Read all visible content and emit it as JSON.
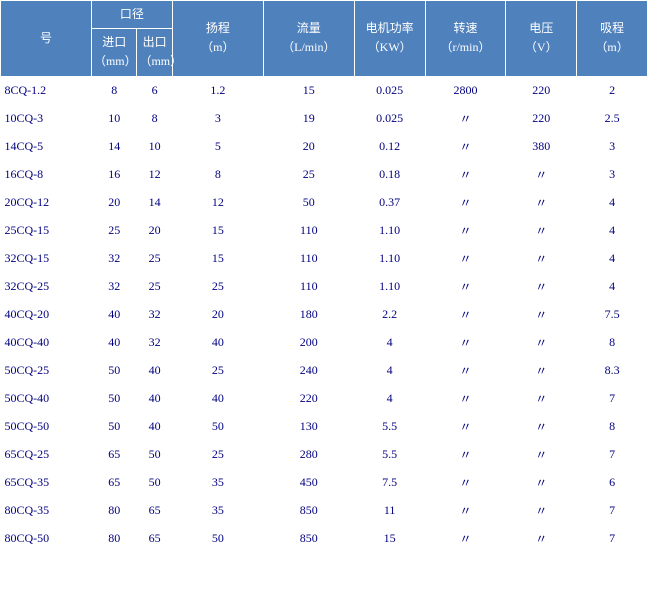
{
  "header": {
    "group_caliber": "口径",
    "model": "号",
    "inlet": "进口",
    "outlet": "出口",
    "unit_mm": "（mm）",
    "unit_mm_stack": "（mm）",
    "head": "扬程",
    "unit_head": "（m）",
    "flow": "流量",
    "unit_flow": "（L/min）",
    "power": "电机功率",
    "unit_power": "（KW）",
    "speed": "转速",
    "unit_speed": "（r/min）",
    "voltage": "电压",
    "unit_voltage": "（V）",
    "suction": "吸程",
    "unit_suction": "（m）"
  },
  "colors": {
    "header_bg": "#4f81bd",
    "header_fg": "#ffffff",
    "cell_fg": "#000080",
    "bg": "#ffffff"
  },
  "columns": [
    "model",
    "inlet",
    "outlet",
    "head",
    "flow",
    "power",
    "speed",
    "voltage",
    "suction"
  ],
  "rows": [
    {
      "model": "8CQ-1.2",
      "inlet": "8",
      "outlet": "6",
      "head": "1.2",
      "flow": "15",
      "power": "0.025",
      "speed": "2800",
      "voltage": "220",
      "suction": "2"
    },
    {
      "model": "10CQ-3",
      "inlet": "10",
      "outlet": "8",
      "head": "3",
      "flow": "19",
      "power": "0.025",
      "speed": "〃",
      "voltage": "220",
      "suction": "2.5"
    },
    {
      "model": "14CQ-5",
      "inlet": "14",
      "outlet": "10",
      "head": "5",
      "flow": "20",
      "power": "0.12",
      "speed": "〃",
      "voltage": "380",
      "suction": "3"
    },
    {
      "model": "16CQ-8",
      "inlet": "16",
      "outlet": "12",
      "head": "8",
      "flow": "25",
      "power": "0.18",
      "speed": "〃",
      "voltage": "〃",
      "suction": "3"
    },
    {
      "model": "20CQ-12",
      "inlet": "20",
      "outlet": "14",
      "head": "12",
      "flow": "50",
      "power": "0.37",
      "speed": "〃",
      "voltage": "〃",
      "suction": "4"
    },
    {
      "model": "25CQ-15",
      "inlet": "25",
      "outlet": "20",
      "head": "15",
      "flow": "110",
      "power": "1.10",
      "speed": "〃",
      "voltage": "〃",
      "suction": "4"
    },
    {
      "model": "32CQ-15",
      "inlet": "32",
      "outlet": "25",
      "head": "15",
      "flow": "110",
      "power": "1.10",
      "speed": "〃",
      "voltage": "〃",
      "suction": "4"
    },
    {
      "model": "32CQ-25",
      "inlet": "32",
      "outlet": "25",
      "head": "25",
      "flow": "110",
      "power": "1.10",
      "speed": "〃",
      "voltage": "〃",
      "suction": "4"
    },
    {
      "model": "40CQ-20",
      "inlet": "40",
      "outlet": "32",
      "head": "20",
      "flow": "180",
      "power": "2.2",
      "speed": "〃",
      "voltage": "〃",
      "suction": "7.5"
    },
    {
      "model": "40CQ-40",
      "inlet": "40",
      "outlet": "32",
      "head": "40",
      "flow": "200",
      "power": "4",
      "speed": "〃",
      "voltage": "〃",
      "suction": "8"
    },
    {
      "model": "50CQ-25",
      "inlet": "50",
      "outlet": "40",
      "head": "25",
      "flow": "240",
      "power": "4",
      "speed": "〃",
      "voltage": "〃",
      "suction": "8.3"
    },
    {
      "model": "50CQ-40",
      "inlet": "50",
      "outlet": "40",
      "head": "40",
      "flow": "220",
      "power": "4",
      "speed": "〃",
      "voltage": "〃",
      "suction": "7"
    },
    {
      "model": "50CQ-50",
      "inlet": "50",
      "outlet": "40",
      "head": "50",
      "flow": "130",
      "power": "5.5",
      "speed": "〃",
      "voltage": "〃",
      "suction": "8"
    },
    {
      "model": "65CQ-25",
      "inlet": "65",
      "outlet": "50",
      "head": "25",
      "flow": "280",
      "power": "5.5",
      "speed": "〃",
      "voltage": "〃",
      "suction": "7"
    },
    {
      "model": "65CQ-35",
      "inlet": "65",
      "outlet": "50",
      "head": "35",
      "flow": "450",
      "power": "7.5",
      "speed": "〃",
      "voltage": "〃",
      "suction": "6"
    },
    {
      "model": "80CQ-35",
      "inlet": "80",
      "outlet": "65",
      "head": "35",
      "flow": "850",
      "power": "11",
      "speed": "〃",
      "voltage": "〃",
      "suction": "7"
    },
    {
      "model": "80CQ-50",
      "inlet": "80",
      "outlet": "65",
      "head": "50",
      "flow": "850",
      "power": "15",
      "speed": "〃",
      "voltage": "〃",
      "suction": "7"
    }
  ]
}
